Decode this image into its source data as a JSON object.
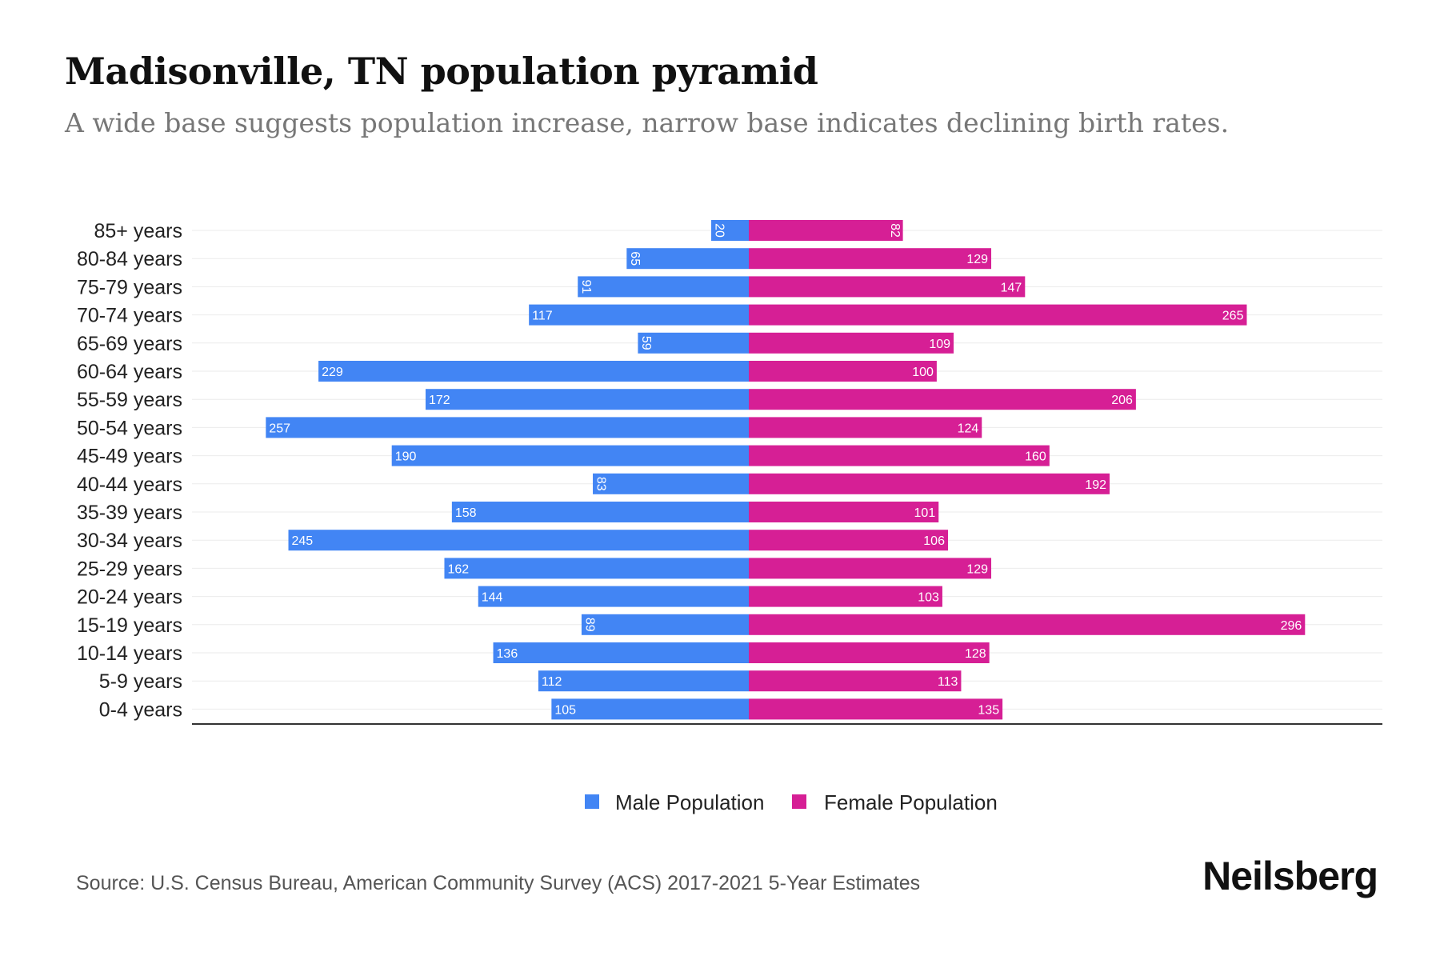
{
  "title": "Madisonville, TN population pyramid",
  "subtitle": "A wide base suggests population increase, narrow base indicates declining birth rates.",
  "source": "Source: U.S. Census Bureau, American Community Survey (ACS) 2017-2021 5-Year Estimates",
  "brand": "Neilsberg",
  "colors": {
    "male": "#4285f4",
    "female": "#d61f95"
  },
  "chart_data": {
    "type": "bar",
    "orientation": "horizontal-diverging",
    "categories": [
      "85+ years",
      "80-84 years",
      "75-79 years",
      "70-74 years",
      "65-69 years",
      "60-64 years",
      "55-59 years",
      "50-54 years",
      "45-49 years",
      "40-44 years",
      "35-39 years",
      "30-34 years",
      "25-29 years",
      "20-24 years",
      "15-19 years",
      "10-14 years",
      "5-9 years",
      "0-4 years"
    ],
    "series": [
      {
        "name": "Male Population",
        "values": [
          20,
          65,
          91,
          117,
          59,
          229,
          172,
          257,
          190,
          83,
          158,
          245,
          162,
          144,
          89,
          136,
          112,
          105
        ]
      },
      {
        "name": "Female Population",
        "values": [
          82,
          129,
          147,
          265,
          109,
          100,
          206,
          124,
          160,
          192,
          101,
          106,
          129,
          103,
          296,
          128,
          113,
          135
        ]
      }
    ],
    "xlim": [
      -296,
      332
    ],
    "legend_position": "bottom-center",
    "grid": true
  }
}
